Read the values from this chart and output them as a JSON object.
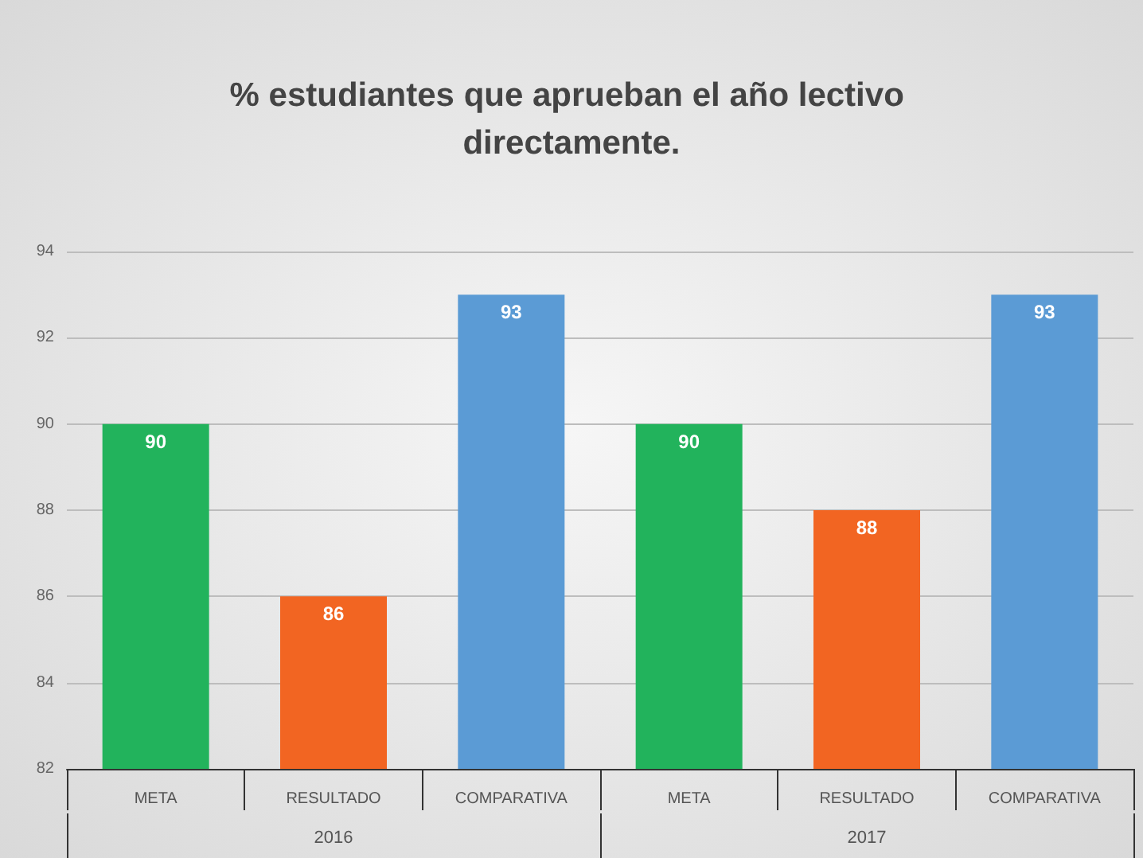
{
  "chart_data": {
    "type": "bar",
    "title": "% estudiantes que aprueban el año lectivo directamente.",
    "categories": [
      "META",
      "RESULTADO",
      "COMPARATIVA",
      "META",
      "RESULTADO",
      "COMPARATIVA"
    ],
    "values": [
      90,
      86,
      93,
      90,
      88,
      93
    ],
    "colors": [
      "#22b35c",
      "#f26522",
      "#5b9bd5",
      "#22b35c",
      "#f26522",
      "#5b9bd5"
    ],
    "annotations": [
      "2016",
      "2017"
    ],
    "ylim": [
      82,
      94
    ],
    "yticks": [
      82,
      84,
      86,
      88,
      90,
      92,
      94
    ],
    "grid": "y",
    "data_labels": true
  }
}
